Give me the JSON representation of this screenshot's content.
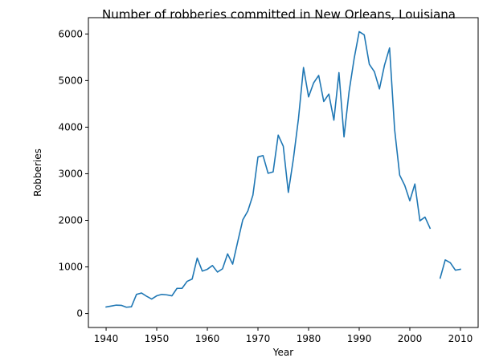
{
  "chart_data": {
    "type": "line",
    "title": "Number of robberies committed in New Orleans, Louisiana",
    "xlabel": "Year",
    "ylabel": "Robberies",
    "xlim": [
      1936.5,
      2013.5
    ],
    "ylim": [
      -300,
      6350
    ],
    "xticks": [
      1940,
      1950,
      1960,
      1970,
      1980,
      1990,
      2000,
      2010
    ],
    "yticks": [
      0,
      1000,
      2000,
      3000,
      4000,
      5000,
      6000
    ],
    "grid": false,
    "colors": {
      "series": "#1f77b4"
    },
    "series": [
      {
        "segments": [
          {
            "x": [
              1940,
              1941,
              1942,
              1943,
              1944,
              1945,
              1946,
              1947,
              1948,
              1949,
              1950,
              1951,
              1952,
              1953,
              1954,
              1955,
              1956,
              1957,
              1958,
              1959,
              1960,
              1961,
              1962,
              1963,
              1964,
              1965,
              1966,
              1967,
              1968,
              1969,
              1970,
              1971,
              1972,
              1973,
              1974,
              1975,
              1976,
              1977,
              1978,
              1979,
              1980,
              1981,
              1982,
              1983,
              1984,
              1985,
              1986,
              1987,
              1988,
              1989,
              1990,
              1991,
              1992,
              1993,
              1994,
              1995,
              1996,
              1997,
              1998,
              1999,
              2000,
              2001,
              2002,
              2003,
              2004
            ],
            "y": [
              140,
              160,
              180,
              175,
              135,
              145,
              410,
              440,
              370,
              310,
              380,
              410,
              400,
              380,
              540,
              540,
              690,
              740,
              1190,
              910,
              950,
              1030,
              890,
              960,
              1280,
              1060,
              1540,
              2010,
              2200,
              2540,
              3360,
              3390,
              3010,
              3040,
              3830,
              3590,
              2600,
              3320,
              4180,
              5280,
              4650,
              4950,
              5110,
              4550,
              4710,
              4150,
              5170,
              3790,
              4760,
              5470,
              6050,
              5980,
              5350,
              5190,
              4820,
              5330,
              5700,
              3950,
              2970,
              2750,
              2420,
              2780,
              1990,
              2070,
              1830
            ]
          },
          {
            "x": [
              2006,
              2007,
              2008,
              2009,
              2010
            ],
            "y": [
              760,
              1150,
              1090,
              930,
              950
            ]
          }
        ]
      }
    ]
  }
}
